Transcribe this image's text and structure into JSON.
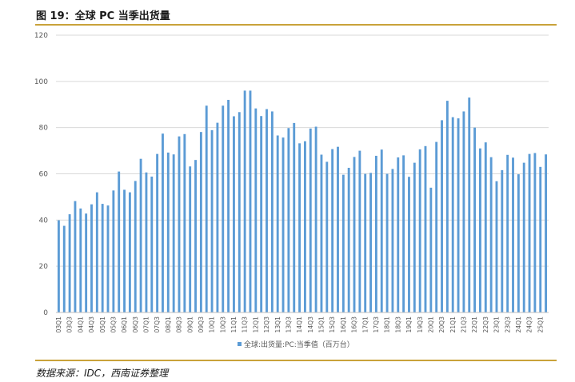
{
  "figure": {
    "title": "图 19：全球 PC 当季出货量",
    "source": "数据来源：IDC，西南证券整理"
  },
  "colors": {
    "bar": "#5b9bd5",
    "grid": "#d9d9d9",
    "rule": "#c9a23a",
    "tick_text": "#595959"
  },
  "chart_data": {
    "type": "bar",
    "title": "",
    "xlabel": "",
    "ylabel": "",
    "ylim": [
      0,
      120
    ],
    "yticks": [
      0,
      20,
      40,
      60,
      80,
      100,
      120
    ],
    "grid": true,
    "legend_position": "bottom",
    "series": [
      {
        "name": "全球:出货量:PC:当季值（百万台）",
        "values": [
          39.9,
          37.5,
          42.5,
          48.2,
          45.0,
          42.8,
          46.8,
          52.0,
          47.0,
          46.3,
          52.8,
          61.0,
          53.1,
          52.0,
          56.9,
          66.5,
          60.6,
          58.8,
          68.6,
          77.4,
          69.2,
          68.4,
          76.2,
          77.2,
          63.2,
          66.0,
          78.1,
          89.5,
          78.9,
          82.1,
          89.5,
          92.0,
          84.9,
          86.7,
          96.0,
          96.0,
          88.3,
          85.0,
          88.0,
          87.0,
          76.6,
          75.7,
          79.8,
          82.0,
          73.2,
          74.1,
          79.6,
          80.4,
          68.3,
          65.2,
          70.7,
          71.7,
          59.6,
          62.6,
          67.3,
          70.0,
          60.0,
          60.4,
          67.8,
          70.5,
          60.0,
          62.1,
          67.1,
          68.0,
          58.7,
          64.8,
          70.6,
          72.0,
          54.0,
          73.8,
          83.2,
          91.6,
          84.5,
          84.0,
          87.0,
          93.0,
          80.0,
          71.0,
          73.6,
          67.2,
          56.8,
          61.6,
          68.2,
          67.0,
          59.8,
          64.8,
          68.6,
          69.0,
          63.0,
          68.4
        ]
      }
    ],
    "categories": [
      "03Q1",
      "03Q2",
      "03Q3",
      "03Q4",
      "04Q1",
      "04Q2",
      "04Q3",
      "04Q4",
      "05Q1",
      "05Q2",
      "05Q3",
      "05Q4",
      "06Q1",
      "06Q2",
      "06Q3",
      "06Q4",
      "07Q1",
      "07Q2",
      "07Q3",
      "07Q4",
      "08Q1",
      "08Q2",
      "08Q3",
      "08Q4",
      "09Q1",
      "09Q2",
      "09Q3",
      "09Q4",
      "10Q1",
      "10Q2",
      "10Q3",
      "10Q4",
      "11Q1",
      "11Q2",
      "11Q3",
      "11Q4",
      "12Q1",
      "12Q2",
      "12Q3",
      "12Q4",
      "13Q1",
      "13Q2",
      "13Q3",
      "13Q4",
      "14Q1",
      "14Q2",
      "14Q3",
      "14Q4",
      "15Q1",
      "15Q2",
      "15Q3",
      "15Q4",
      "16Q1",
      "16Q2",
      "16Q3",
      "16Q4",
      "17Q1",
      "17Q2",
      "17Q3",
      "17Q4",
      "18Q1",
      "18Q2",
      "18Q3",
      "18Q4",
      "19Q1",
      "19Q2",
      "19Q3",
      "19Q4",
      "20Q1",
      "20Q2",
      "20Q3",
      "20Q4",
      "21Q1",
      "21Q2",
      "21Q3",
      "21Q4",
      "22Q1",
      "22Q2",
      "22Q3",
      "22Q4",
      "23Q1",
      "23Q2",
      "23Q3",
      "23Q4",
      "24Q1",
      "24Q2",
      "24Q3",
      "24Q4",
      "25Q1",
      "25Q2"
    ],
    "x_tick_labels": [
      "03Q1",
      "03Q3",
      "04Q1",
      "04Q3",
      "05Q1",
      "05Q3",
      "06Q1",
      "06Q3",
      "07Q1",
      "07Q3",
      "08Q1",
      "08Q3",
      "09Q1",
      "09Q3",
      "10Q1",
      "10Q3",
      "11Q1",
      "11Q3",
      "12Q1",
      "12Q3",
      "13Q1",
      "13Q3",
      "14Q1",
      "14Q3",
      "15Q1",
      "15Q3",
      "16Q1",
      "16Q3",
      "17Q1",
      "17Q3",
      "18Q1",
      "18Q3",
      "19Q1",
      "19Q3",
      "20Q1",
      "20Q3",
      "21Q1",
      "21Q3",
      "22Q1",
      "22Q3",
      "23Q1",
      "23Q3",
      "24Q1",
      "24Q3",
      "25Q1"
    ]
  }
}
